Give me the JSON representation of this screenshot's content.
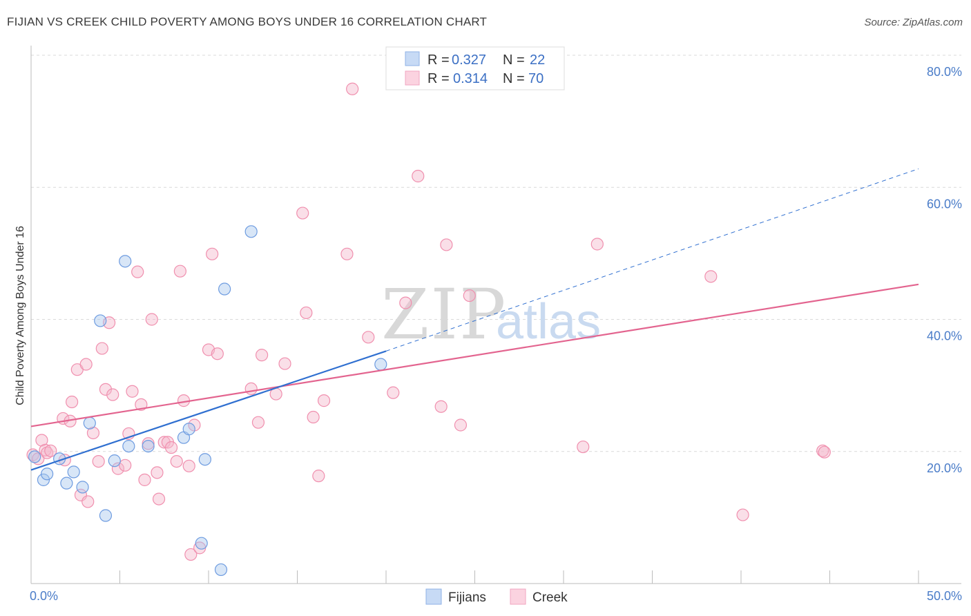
{
  "title": "FIJIAN VS CREEK CHILD POVERTY AMONG BOYS UNDER 16 CORRELATION CHART",
  "source": "Source: ZipAtlas.com",
  "watermark": {
    "zip": "ZIP",
    "atlas": "atlas"
  },
  "legend": {
    "r_label": "R =",
    "n_label": "N =",
    "rows": [
      {
        "r": "0.327",
        "n": "22",
        "color": "#a9c7ee"
      },
      {
        "r": "0.314",
        "n": "70",
        "color": "#f5b8cc"
      }
    ]
  },
  "bottom_legend": [
    "Fijians",
    "Creek"
  ],
  "chart_data": {
    "type": "scatter",
    "ylabel": "Child Poverty Among Boys Under 16",
    "xlim": [
      0,
      50
    ],
    "ylim": [
      0,
      80
    ],
    "x_tick_labels": [
      "0.0%",
      "50.0%"
    ],
    "y_ticks": [
      20,
      40,
      60,
      80
    ],
    "y_tick_labels": [
      "20.0%",
      "40.0%",
      "60.0%",
      "80.0%"
    ],
    "grid": true,
    "legend_position": "top-center",
    "colors": {
      "fijians": "#6d9be0",
      "creek": "#f08fae",
      "fijians_line": "#2f6fd0",
      "creek_line": "#e3648f"
    },
    "series": [
      {
        "name": "Fijians",
        "points": [
          [
            0.2,
            19.2
          ],
          [
            0.7,
            15.7
          ],
          [
            0.9,
            16.6
          ],
          [
            1.6,
            18.9
          ],
          [
            2.0,
            15.2
          ],
          [
            2.4,
            16.9
          ],
          [
            2.9,
            14.6
          ],
          [
            3.3,
            24.3
          ],
          [
            3.9,
            39.8
          ],
          [
            4.2,
            10.3
          ],
          [
            4.7,
            18.6
          ],
          [
            5.3,
            48.8
          ],
          [
            5.5,
            20.8
          ],
          [
            6.6,
            20.8
          ],
          [
            8.6,
            22.1
          ],
          [
            8.9,
            23.4
          ],
          [
            9.6,
            6.1
          ],
          [
            9.8,
            18.8
          ],
          [
            10.7,
            2.1
          ],
          [
            10.9,
            44.6
          ],
          [
            12.4,
            53.3
          ],
          [
            19.7,
            33.2
          ]
        ],
        "trend": {
          "x": [
            0,
            20
          ],
          "y": [
            17.2,
            35.2
          ]
        },
        "trend_extension": {
          "x": [
            20,
            50
          ],
          "y": [
            35.2,
            62.8
          ]
        }
      },
      {
        "name": "Creek",
        "points": [
          [
            0.1,
            19.5
          ],
          [
            0.4,
            18.9
          ],
          [
            0.6,
            21.7
          ],
          [
            0.8,
            20.2
          ],
          [
            0.9,
            19.8
          ],
          [
            1.1,
            20.1
          ],
          [
            1.8,
            25.0
          ],
          [
            1.9,
            18.7
          ],
          [
            2.2,
            24.6
          ],
          [
            2.3,
            27.5
          ],
          [
            2.6,
            32.4
          ],
          [
            2.8,
            13.4
          ],
          [
            3.1,
            33.2
          ],
          [
            3.2,
            12.4
          ],
          [
            3.5,
            22.8
          ],
          [
            3.8,
            18.5
          ],
          [
            4.0,
            35.6
          ],
          [
            4.2,
            29.4
          ],
          [
            4.4,
            39.5
          ],
          [
            4.6,
            28.6
          ],
          [
            4.9,
            17.4
          ],
          [
            5.3,
            17.9
          ],
          [
            5.5,
            22.7
          ],
          [
            5.7,
            29.1
          ],
          [
            6.0,
            47.2
          ],
          [
            6.2,
            27.1
          ],
          [
            6.4,
            15.7
          ],
          [
            6.6,
            21.2
          ],
          [
            6.8,
            40.0
          ],
          [
            7.1,
            16.8
          ],
          [
            7.2,
            12.8
          ],
          [
            7.5,
            21.4
          ],
          [
            7.7,
            21.4
          ],
          [
            7.9,
            20.6
          ],
          [
            8.2,
            18.5
          ],
          [
            8.4,
            47.3
          ],
          [
            8.6,
            27.7
          ],
          [
            8.9,
            17.8
          ],
          [
            9.0,
            4.4
          ],
          [
            9.2,
            24.0
          ],
          [
            9.5,
            5.4
          ],
          [
            10.0,
            35.4
          ],
          [
            10.2,
            49.9
          ],
          [
            10.5,
            34.8
          ],
          [
            12.4,
            29.5
          ],
          [
            12.8,
            24.4
          ],
          [
            13.0,
            34.6
          ],
          [
            13.8,
            28.7
          ],
          [
            14.3,
            33.3
          ],
          [
            15.3,
            56.1
          ],
          [
            15.5,
            41.0
          ],
          [
            15.9,
            25.2
          ],
          [
            16.2,
            16.3
          ],
          [
            16.5,
            27.7
          ],
          [
            17.8,
            49.9
          ],
          [
            18.1,
            74.9
          ],
          [
            19.0,
            37.3
          ],
          [
            20.4,
            28.9
          ],
          [
            21.1,
            42.5
          ],
          [
            21.8,
            61.7
          ],
          [
            23.1,
            26.8
          ],
          [
            23.4,
            51.3
          ],
          [
            24.2,
            24.0
          ],
          [
            24.7,
            43.6
          ],
          [
            31.1,
            20.7
          ],
          [
            31.9,
            51.4
          ],
          [
            38.3,
            46.5
          ],
          [
            40.1,
            10.4
          ],
          [
            44.6,
            20.1
          ],
          [
            44.7,
            19.9
          ]
        ],
        "trend": {
          "x": [
            0,
            50
          ],
          "y": [
            23.8,
            45.3
          ]
        }
      }
    ]
  }
}
